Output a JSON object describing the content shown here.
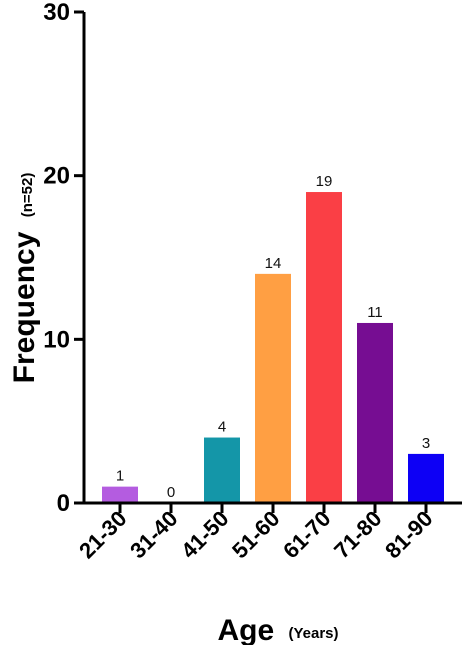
{
  "chart_data": {
    "type": "bar",
    "categories": [
      "21-30",
      "31-40",
      "41-50",
      "51-60",
      "61-70",
      "71-80",
      "81-90"
    ],
    "values": [
      1,
      0,
      4,
      14,
      19,
      11,
      3
    ],
    "data_labels": [
      "1",
      "0",
      "4",
      "14",
      "19",
      "11",
      "3"
    ],
    "colors": [
      "#b45ce0",
      "#9b9b9b",
      "#1496a8",
      "#ff9f43",
      "#fa3f45",
      "#760d92",
      "#0d00f5"
    ],
    "ylim": [
      0,
      30
    ],
    "yticks": [
      "0",
      "10",
      "20",
      "30"
    ],
    "xlabel": "Age",
    "xlabel_sub": "(Years)",
    "ylabel": "Frequency",
    "ylabel_sub": "(n=52)",
    "grid": false
  }
}
